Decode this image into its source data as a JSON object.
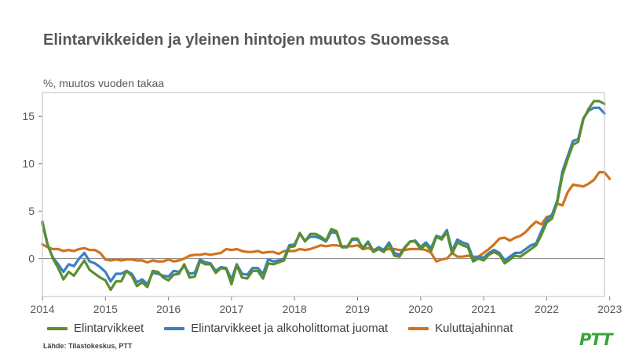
{
  "header": {
    "title": "Elintarvikkeiden ja yleinen hintojen muutos Suomessa",
    "subtitle": "%, muutos vuoden takaa"
  },
  "footer": {
    "source": "Lähde: Tilastokeskus, PTT",
    "logo_text": "PTT"
  },
  "colors": {
    "food": "#5a8f2e",
    "food_nonalc": "#3b7fc4",
    "cpi": "#d0731f",
    "logo": "#3aa33a"
  },
  "chart_data": {
    "type": "line",
    "x_start": "2014-01",
    "x_end": "2023-01",
    "frequency": "monthly",
    "xticks": [
      "2014",
      "2015",
      "2016",
      "2017",
      "2018",
      "2019",
      "2020",
      "2021",
      "2022",
      "2023"
    ],
    "yticks": [
      "0",
      "5",
      "10",
      "15"
    ],
    "ylim": [
      -4,
      17.5
    ],
    "grid": false,
    "legend_position": "bottom",
    "series": [
      {
        "name": "Elintarvikkeet",
        "color_key": "food",
        "values": [
          3.9,
          1.5,
          0.0,
          -1.0,
          -2.2,
          -1.4,
          -1.8,
          -1.0,
          -0.2,
          -1.2,
          -1.6,
          -2.0,
          -2.3,
          -3.3,
          -2.4,
          -2.4,
          -1.3,
          -1.8,
          -2.9,
          -2.5,
          -3.0,
          -1.3,
          -1.4,
          -2.0,
          -2.3,
          -1.7,
          -1.6,
          -0.6,
          -2.0,
          -1.9,
          -0.3,
          -0.6,
          -0.6,
          -1.5,
          -1.0,
          -1.1,
          -2.7,
          -0.7,
          -2.0,
          -2.1,
          -1.3,
          -1.3,
          -2.1,
          -0.5,
          -0.6,
          -0.4,
          -0.2,
          1.2,
          1.3,
          2.7,
          1.8,
          2.6,
          2.6,
          2.3,
          1.9,
          3.1,
          2.9,
          1.2,
          1.2,
          2.1,
          2.1,
          1.0,
          1.7,
          0.7,
          1.0,
          0.7,
          1.5,
          0.3,
          0.2,
          1.1,
          1.8,
          1.8,
          1.0,
          1.5,
          0.8,
          2.3,
          2.0,
          2.8,
          0.5,
          1.7,
          1.4,
          1.2,
          -0.3,
          0.0,
          -0.2,
          0.4,
          0.7,
          0.4,
          -0.5,
          -0.1,
          0.3,
          0.2,
          0.6,
          1.0,
          1.4,
          2.5,
          3.8,
          4.2,
          5.9,
          8.8,
          10.5,
          12.0,
          12.3,
          14.7,
          15.8,
          16.6,
          16.6,
          16.3
        ]
      },
      {
        "name": "Elintarvikkeet ja alkoholittomat juomat",
        "color_key": "food_nonalc",
        "values": [
          3.7,
          1.4,
          0.1,
          -0.6,
          -1.4,
          -0.6,
          -0.8,
          0.0,
          0.6,
          -0.3,
          -0.5,
          -0.9,
          -1.4,
          -2.4,
          -1.6,
          -1.6,
          -1.3,
          -1.6,
          -2.5,
          -2.2,
          -2.7,
          -1.5,
          -1.6,
          -1.8,
          -1.9,
          -1.3,
          -1.4,
          -0.8,
          -1.6,
          -1.5,
          -0.1,
          -0.4,
          -0.5,
          -1.3,
          -0.9,
          -1.0,
          -2.2,
          -0.6,
          -1.6,
          -1.7,
          -1.0,
          -1.0,
          -1.6,
          -0.1,
          -0.3,
          -0.2,
          0.0,
          1.4,
          1.5,
          2.6,
          1.9,
          2.3,
          2.3,
          2.1,
          1.8,
          2.8,
          2.7,
          1.2,
          1.2,
          2.0,
          2.0,
          1.1,
          1.8,
          0.8,
          1.2,
          0.9,
          1.7,
          0.6,
          0.4,
          1.2,
          1.8,
          1.9,
          1.2,
          1.7,
          1.1,
          2.4,
          2.2,
          3.0,
          0.8,
          2.0,
          1.7,
          1.5,
          0.0,
          0.2,
          0.1,
          0.6,
          0.9,
          0.6,
          -0.2,
          0.2,
          0.6,
          0.6,
          1.0,
          1.4,
          1.6,
          2.9,
          4.1,
          4.6,
          6.1,
          9.2,
          10.8,
          12.4,
          12.6,
          14.8,
          15.6,
          15.9,
          15.9,
          15.3
        ]
      },
      {
        "name": "Kuluttajahinnat",
        "color_key": "cpi",
        "values": [
          1.5,
          1.2,
          1.0,
          1.0,
          0.8,
          0.9,
          0.8,
          1.0,
          1.1,
          0.9,
          0.9,
          0.6,
          -0.1,
          -0.2,
          -0.1,
          -0.2,
          -0.1,
          -0.1,
          -0.2,
          -0.2,
          -0.4,
          -0.2,
          -0.3,
          -0.3,
          -0.1,
          -0.3,
          -0.2,
          0.0,
          0.3,
          0.4,
          0.4,
          0.5,
          0.4,
          0.5,
          0.6,
          1.0,
          0.9,
          1.0,
          0.8,
          0.7,
          0.7,
          0.8,
          0.6,
          0.7,
          0.7,
          0.5,
          0.8,
          0.8,
          0.8,
          1.0,
          0.9,
          1.0,
          1.2,
          1.4,
          1.3,
          1.4,
          1.4,
          1.3,
          1.3,
          1.3,
          1.4,
          1.0,
          1.1,
          0.9,
          1.1,
          0.9,
          1.0,
          1.0,
          0.9,
          0.9,
          1.0,
          1.0,
          1.0,
          0.9,
          0.6,
          -0.3,
          -0.1,
          0.0,
          0.6,
          0.2,
          0.2,
          0.3,
          0.2,
          0.2,
          0.6,
          1.0,
          1.5,
          2.1,
          2.2,
          1.9,
          2.2,
          2.4,
          2.8,
          3.4,
          3.9,
          3.6,
          4.4,
          4.5,
          5.8,
          5.6,
          7.0,
          7.8,
          7.7,
          7.6,
          7.9,
          8.3,
          9.1,
          9.1,
          8.4
        ]
      }
    ]
  }
}
